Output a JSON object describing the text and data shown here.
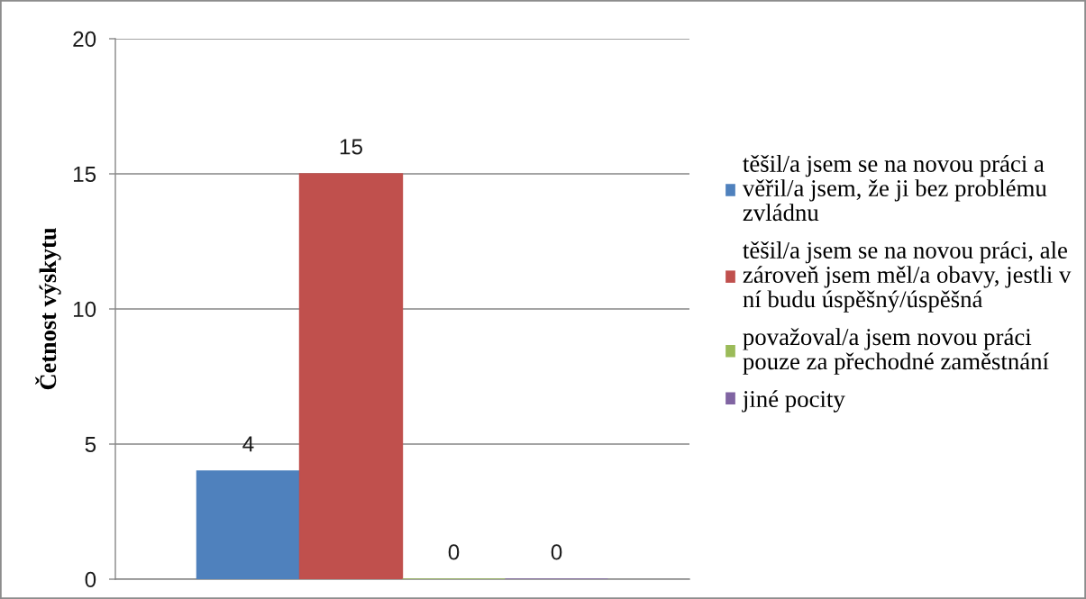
{
  "chart_data": {
    "type": "bar",
    "ylabel": "Četnost výskytu",
    "categories": [
      null
    ],
    "series": [
      {
        "name": "těšil/a jsem se na novou práci a věřil/a jsem, že ji bez problému zvládnu",
        "color": "#4f81bd",
        "values": [
          4
        ]
      },
      {
        "name": "těšil/a jsem se na novou práci, ale zároveň jsem měl/a obavy, jestli v ní budu úspěšný/úspěšná",
        "color": "#c0504d",
        "values": [
          15
        ]
      },
      {
        "name": "považoval/a jsem novou práci pouze za přechodné zaměstnání",
        "color": "#9bbb59",
        "values": [
          0
        ]
      },
      {
        "name": "jiné pocity",
        "color": "#8064a2",
        "values": [
          0
        ]
      }
    ],
    "ylim": [
      0,
      20
    ],
    "yticks": [
      0,
      5,
      10,
      15,
      20
    ],
    "grid": "y",
    "legend": "right",
    "data_labels": true
  }
}
